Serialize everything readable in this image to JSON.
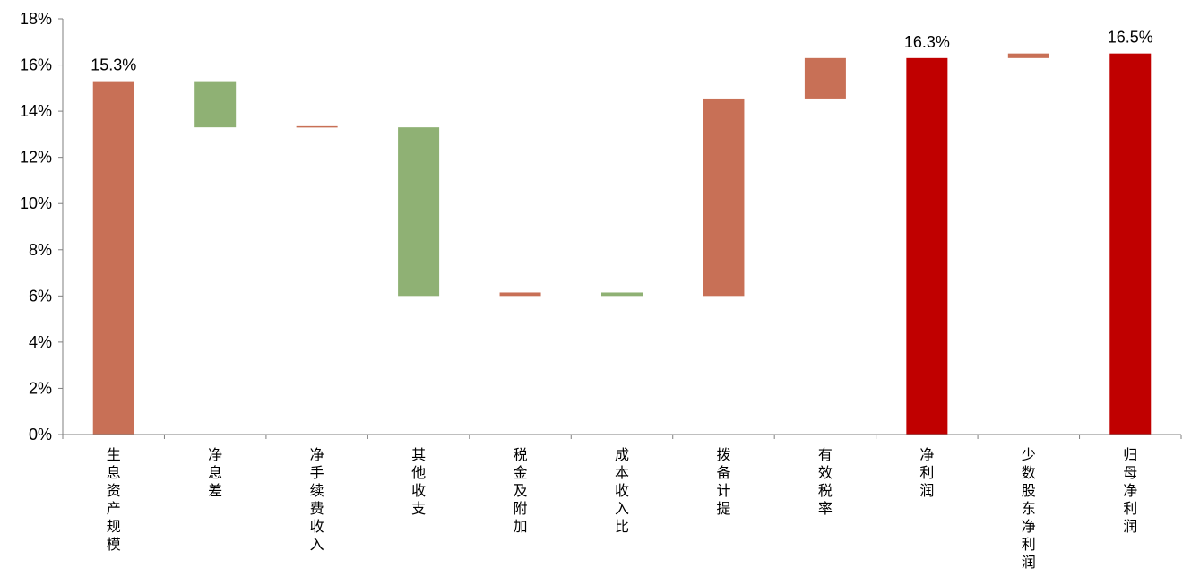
{
  "chart_data": {
    "type": "bar",
    "subtype": "waterfall",
    "title": "",
    "xlabel": "",
    "ylabel": "",
    "ylim": [
      0,
      18
    ],
    "yticks": [
      0,
      2,
      4,
      6,
      8,
      10,
      12,
      14,
      16,
      18
    ],
    "ytick_labels": [
      "0%",
      "2%",
      "4%",
      "6%",
      "8%",
      "10%",
      "12%",
      "14%",
      "16%",
      "18%"
    ],
    "grid": false,
    "legend": "none",
    "categories": [
      "生息资产规模",
      "净息差",
      "净手续费收入",
      "其他收支",
      "税金及附加",
      "成本收入比",
      "拨备计提",
      "有效税率",
      "净利润",
      "少数股东净利润",
      "归母净利润"
    ],
    "bars": [
      {
        "start": 0,
        "end": 15.3,
        "kind": "increase",
        "label": "15.3%"
      },
      {
        "start": 15.3,
        "end": 13.3,
        "kind": "decrease",
        "label": ""
      },
      {
        "start": 13.3,
        "end": 13.35,
        "kind": "increase",
        "label": ""
      },
      {
        "start": 13.3,
        "end": 6.0,
        "kind": "decrease",
        "label": ""
      },
      {
        "start": 6.0,
        "end": 6.15,
        "kind": "increase",
        "label": ""
      },
      {
        "start": 6.15,
        "end": 6.0,
        "kind": "decrease",
        "label": ""
      },
      {
        "start": 6.0,
        "end": 14.55,
        "kind": "increase",
        "label": ""
      },
      {
        "start": 14.55,
        "end": 16.3,
        "kind": "increase",
        "label": ""
      },
      {
        "start": 0,
        "end": 16.3,
        "kind": "total",
        "label": "16.3%"
      },
      {
        "start": 16.3,
        "end": 16.5,
        "kind": "increase",
        "label": ""
      },
      {
        "start": 0,
        "end": 16.5,
        "kind": "total",
        "label": "16.5%"
      }
    ],
    "colors": {
      "increase": "#c87056",
      "decrease": "#8fb174",
      "total": "#c00000",
      "axis": "#7f7f7f"
    }
  }
}
